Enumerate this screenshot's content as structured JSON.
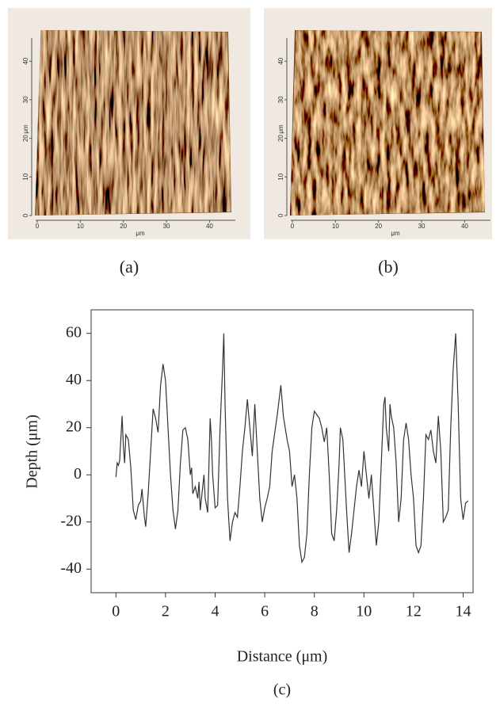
{
  "afm_images": [
    {
      "label": "(a)",
      "xlabel": "μm",
      "ylabel": "μm",
      "xlim": [
        0,
        46
      ],
      "ylim": [
        0,
        46
      ],
      "xticks": [
        0,
        10,
        20,
        30,
        40
      ],
      "yticks": [
        0,
        10,
        20,
        30,
        40
      ]
    },
    {
      "label": "(b)",
      "xlabel": "μm",
      "ylabel": "μm",
      "xlim": [
        0,
        46
      ],
      "ylim": [
        0,
        46
      ],
      "xticks": [
        0,
        10,
        20,
        30,
        40
      ],
      "yticks": [
        0,
        10,
        20,
        30,
        40
      ]
    }
  ],
  "chart_data": {
    "type": "line",
    "xlabel": "Distance (μm)",
    "ylabel": "Depth (μm)",
    "caption": "(c)",
    "x": [
      0,
      0.05,
      0.1,
      0.15,
      0.25,
      0.3,
      0.35,
      0.4,
      0.5,
      0.6,
      0.7,
      0.8,
      0.9,
      1.0,
      1.05,
      1.15,
      1.2,
      1.3,
      1.4,
      1.5,
      1.6,
      1.7,
      1.8,
      1.9,
      2.0,
      2.1,
      2.2,
      2.3,
      2.4,
      2.5,
      2.6,
      2.7,
      2.8,
      2.9,
      3.0,
      3.05,
      3.1,
      3.2,
      3.3,
      3.35,
      3.4,
      3.5,
      3.55,
      3.6,
      3.7,
      3.8,
      3.85,
      3.9,
      4.0,
      4.1,
      4.2,
      4.3,
      4.35,
      4.4,
      4.5,
      4.6,
      4.7,
      4.8,
      4.9,
      5.0,
      5.1,
      5.2,
      5.3,
      5.4,
      5.5,
      5.6,
      5.7,
      5.8,
      5.9,
      6.0,
      6.1,
      6.2,
      6.3,
      6.5,
      6.65,
      6.75,
      6.9,
      7.0,
      7.1,
      7.2,
      7.3,
      7.4,
      7.5,
      7.6,
      7.7,
      7.8,
      7.9,
      8.0,
      8.2,
      8.3,
      8.4,
      8.5,
      8.6,
      8.7,
      8.8,
      8.9,
      9.0,
      9.05,
      9.15,
      9.3,
      9.4,
      9.5,
      9.7,
      9.8,
      9.9,
      10.0,
      10.1,
      10.2,
      10.3,
      10.4,
      10.5,
      10.6,
      10.7,
      10.8,
      10.85,
      10.9,
      11.0,
      11.05,
      11.1,
      11.2,
      11.3,
      11.4,
      11.5,
      11.6,
      11.7,
      11.8,
      11.9,
      12.0,
      12.1,
      12.2,
      12.3,
      12.4,
      12.5,
      12.6,
      12.7,
      12.8,
      12.9,
      13.0,
      13.1,
      13.2,
      13.3,
      13.4,
      13.5,
      13.6,
      13.7,
      13.8,
      13.9,
      14.0,
      14.1,
      14.2
    ],
    "series": [
      {
        "color": "#333333",
        "values": [
          -1,
          5,
          4,
          6,
          25,
          12,
          5,
          17,
          15,
          3,
          -15,
          -19,
          -13,
          -11,
          -6,
          -18,
          -22,
          -8,
          10,
          28,
          24,
          18,
          38,
          47,
          40,
          20,
          0,
          -15,
          -23,
          -15,
          5,
          19,
          20,
          15,
          0,
          3,
          -8,
          -5,
          -10,
          -3,
          -15,
          -5,
          0,
          -10,
          -16,
          24,
          15,
          0,
          -14,
          -13,
          20,
          45,
          60,
          30,
          -10,
          -28,
          -20,
          -16,
          -18,
          -5,
          10,
          20,
          32,
          20,
          8,
          30,
          10,
          -10,
          -20,
          -14,
          -10,
          -5,
          10,
          25,
          38,
          25,
          15,
          10,
          -5,
          0,
          -10,
          -30,
          -37,
          -35,
          -25,
          0,
          20,
          27,
          24,
          20,
          14,
          20,
          0,
          -25,
          -28,
          -15,
          5,
          20,
          15,
          -15,
          -33,
          -25,
          -5,
          2,
          -5,
          10,
          0,
          -10,
          0,
          -15,
          -30,
          -20,
          5,
          30,
          33,
          20,
          10,
          30,
          25,
          20,
          5,
          -20,
          -10,
          15,
          22,
          15,
          0,
          -10,
          -30,
          -33,
          -30,
          -10,
          17,
          15,
          19,
          10,
          5,
          25,
          10,
          -20,
          -18,
          -15,
          20,
          45,
          60,
          30,
          -10,
          -19,
          -12,
          -11
        ]
      }
    ],
    "xlim": [
      -1,
      14.4
    ],
    "ylim": [
      -50,
      70
    ],
    "xticks": [
      0,
      2,
      4,
      6,
      8,
      10,
      12,
      14
    ],
    "yticks": [
      -40,
      -20,
      0,
      20,
      40,
      60
    ]
  }
}
